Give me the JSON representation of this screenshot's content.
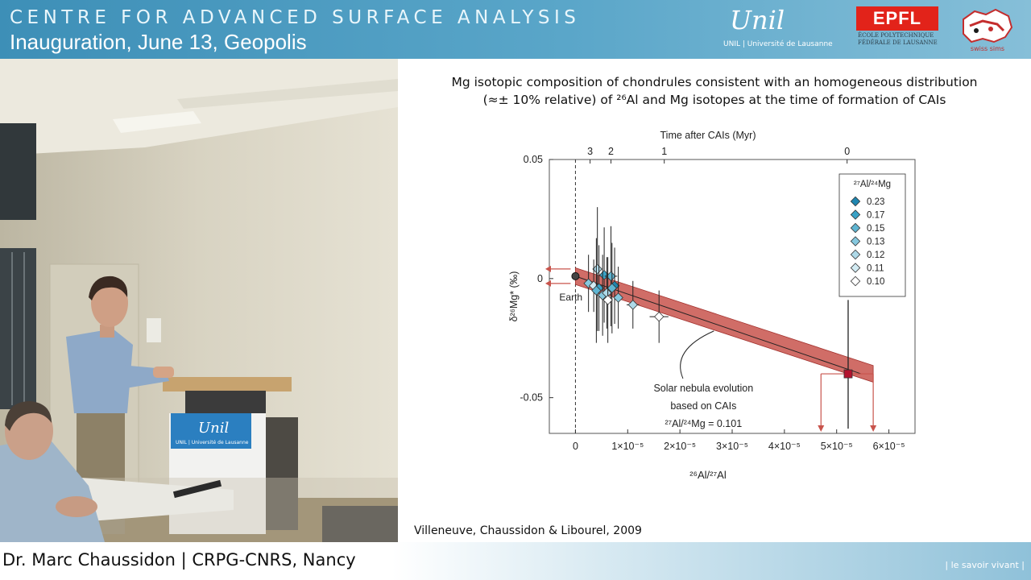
{
  "header": {
    "title": "CENTRE FOR ADVANCED SURFACE ANALYSIS",
    "subtitle": "Inauguration, June 13, Geopolis"
  },
  "logos": {
    "unil": {
      "wordmark": "Unil",
      "tagline": "UNIL | Université de Lausanne"
    },
    "epfl": {
      "wordmark": "EPFL",
      "tagline": "ÉCOLE POLYTECHNIQUE FÉDÉRALE DE LAUSANNE"
    },
    "swiss": {
      "wordmark": "swiss sims"
    }
  },
  "video": {
    "lectern_logo": "Unil",
    "lectern_tagline": "UNIL | Université de Lausanne"
  },
  "slide": {
    "caption_line1": "Mg isotopic composition of chondrules consistent with an homogeneous distribution",
    "caption_line2": "(≈± 10% relative) of ²⁶Al and Mg isotopes at the time of formation of CAIs",
    "citation": "Villeneuve, Chaussidon & Libourel, 2009"
  },
  "footer": {
    "speaker": "Dr. Marc Chaussidon | CRPG-CNRS, Nancy",
    "motto": "| le savoir vivant |"
  },
  "colors": {
    "header_blue": "#4a9bc2",
    "band_red": "#c8544c",
    "point_dark": "#1f86b0",
    "cai_square": "#b3122e"
  },
  "chart_data": {
    "type": "scatter",
    "xlabel": "²⁶Al/²⁷Al",
    "ylabel": "δ²⁶Mg* (‰)",
    "top_axis_label": "Time after CAIs (Myr)",
    "xlim": [
      -5e-06,
      6.5e-05
    ],
    "ylim": [
      -0.065,
      0.05
    ],
    "x_ticks": [
      {
        "value": 0,
        "label": "0"
      },
      {
        "value": 1e-05,
        "label": "1×10⁻⁵"
      },
      {
        "value": 2e-05,
        "label": "2×10⁻⁵"
      },
      {
        "value": 3e-05,
        "label": "3×10⁻⁵"
      },
      {
        "value": 4e-05,
        "label": "4×10⁻⁵"
      },
      {
        "value": 5e-05,
        "label": "5×10⁻⁵"
      },
      {
        "value": 6e-05,
        "label": "6×10⁻⁵"
      }
    ],
    "y_ticks": [
      {
        "value": 0.05,
        "label": "0.05"
      },
      {
        "value": 0,
        "label": "0"
      },
      {
        "value": -0.05,
        "label": "-0.05"
      }
    ],
    "top_ticks": [
      {
        "value": 2.8e-06,
        "label": "3"
      },
      {
        "value": 6.8e-06,
        "label": "2"
      },
      {
        "value": 1.7e-05,
        "label": "1"
      },
      {
        "value": 5.2e-05,
        "label": "0"
      }
    ],
    "legend_title": "²⁷Al/²⁴Mg",
    "legend_position": "top-right",
    "legend": [
      {
        "label": "0.23",
        "color": "#1f86b0"
      },
      {
        "label": "0.17",
        "color": "#3aa2c6"
      },
      {
        "label": "0.15",
        "color": "#5fb5d2"
      },
      {
        "label": "0.13",
        "color": "#86c8de"
      },
      {
        "label": "0.12",
        "color": "#aed9e8"
      },
      {
        "label": "0.11",
        "color": "#d2ebf3"
      },
      {
        "label": "0.10",
        "color": "#ffffff"
      }
    ],
    "points": [
      {
        "x": 4.2e-06,
        "y": 0.004,
        "yerr": 0.026,
        "xerr": 0,
        "ratio": 0.12
      },
      {
        "x": 5.5e-06,
        "y": 0.0015,
        "yerr": 0.02,
        "xerr": 0,
        "ratio": 0.17
      },
      {
        "x": 6.8e-06,
        "y": 0.001,
        "yerr": 0.021,
        "xerr": 1.2e-06,
        "ratio": 0.15
      },
      {
        "x": 2.5e-06,
        "y": -0.002,
        "yerr": 0.012,
        "xerr": 0,
        "ratio": 0.13
      },
      {
        "x": 3.5e-06,
        "y": -0.003,
        "yerr": 0.011,
        "xerr": 0,
        "ratio": 0.11
      },
      {
        "x": 4.5e-06,
        "y": -0.004,
        "yerr": 0.018,
        "xerr": 0,
        "ratio": 0.17
      },
      {
        "x": 7.5e-06,
        "y": -0.003,
        "yerr": 0.016,
        "xerr": 0,
        "ratio": 0.23
      },
      {
        "x": 4e-06,
        "y": -0.005,
        "yerr": 0.022,
        "xerr": 0,
        "ratio": 0.15
      },
      {
        "x": 5.2e-06,
        "y": -0.007,
        "yerr": 0.017,
        "xerr": 8e-07,
        "ratio": 0.13
      },
      {
        "x": 6e-06,
        "y": -0.006,
        "yerr": 0.015,
        "xerr": 0,
        "ratio": 0.12
      },
      {
        "x": 7e-06,
        "y": -0.004,
        "yerr": 0.019,
        "xerr": 0,
        "ratio": 0.15
      },
      {
        "x": 6.2e-06,
        "y": -0.009,
        "yerr": 0.018,
        "xerr": 0,
        "ratio": 0.1
      },
      {
        "x": 8.2e-06,
        "y": -0.008,
        "yerr": 0.013,
        "xerr": 0,
        "ratio": 0.13
      },
      {
        "x": 1.1e-05,
        "y": -0.011,
        "yerr": 0.01,
        "xerr": 1.2e-06,
        "ratio": 0.12
      },
      {
        "x": 1.6e-05,
        "y": -0.016,
        "yerr": 0.011,
        "xerr": 1.8e-06,
        "ratio": 0.1
      }
    ],
    "earth": {
      "x": 0,
      "y": 0.001,
      "label": "Earth"
    },
    "cai": {
      "x": 5.22e-05,
      "y": -0.04,
      "yerr_up": 0.031,
      "yerr_down": 0.023
    },
    "band": {
      "x0": 0,
      "y0": 0.001,
      "x1": 5.7e-05,
      "y1": -0.04,
      "half_width": 0.0035
    },
    "annotation": {
      "lines": [
        "Solar nebula evolution",
        "based on CAIs",
        "²⁷Al/²⁴Mg = 0.101"
      ]
    }
  }
}
